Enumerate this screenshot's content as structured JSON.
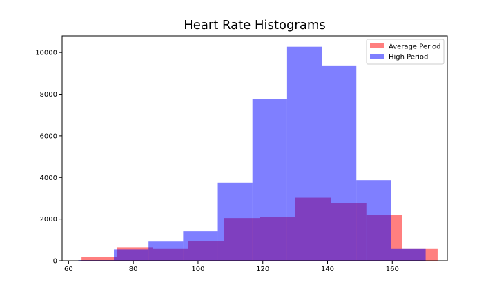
{
  "chart_data": {
    "type": "bar",
    "title": "Heart Rate Histograms",
    "xlabel": "",
    "ylabel": "",
    "xlim": [
      58,
      177
    ],
    "ylim": [
      0,
      10800
    ],
    "xticks": [
      60,
      80,
      100,
      120,
      140,
      160
    ],
    "yticks": [
      0,
      2000,
      4000,
      6000,
      8000,
      10000
    ],
    "grid": false,
    "legend_position": "top-right",
    "series": [
      {
        "name": "Average Period",
        "color": "#ff0000",
        "opacity": 0.5,
        "bins": [
          {
            "x0": 64,
            "x1": 75,
            "value": 180
          },
          {
            "x0": 75,
            "x1": 86,
            "value": 650
          },
          {
            "x0": 86,
            "x1": 97,
            "value": 570
          },
          {
            "x0": 97,
            "x1": 108,
            "value": 960
          },
          {
            "x0": 108,
            "x1": 119,
            "value": 2050
          },
          {
            "x0": 119,
            "x1": 130,
            "value": 2120
          },
          {
            "x0": 130,
            "x1": 141,
            "value": 3030
          },
          {
            "x0": 141,
            "x1": 152,
            "value": 2760
          },
          {
            "x0": 152,
            "x1": 163,
            "value": 2200
          },
          {
            "x0": 163,
            "x1": 174,
            "value": 570
          }
        ]
      },
      {
        "name": "High Period",
        "color": "#0000ff",
        "opacity": 0.5,
        "bins": [
          {
            "x0": 63,
            "x1": 74,
            "value": 30
          },
          {
            "x0": 74,
            "x1": 84.7,
            "value": 550
          },
          {
            "x0": 84.7,
            "x1": 95.4,
            "value": 920
          },
          {
            "x0": 95.4,
            "x1": 106.1,
            "value": 1420
          },
          {
            "x0": 106.1,
            "x1": 116.8,
            "value": 3750
          },
          {
            "x0": 116.8,
            "x1": 127.5,
            "value": 7770
          },
          {
            "x0": 127.5,
            "x1": 138.2,
            "value": 10280
          },
          {
            "x0": 138.2,
            "x1": 148.9,
            "value": 9380
          },
          {
            "x0": 148.9,
            "x1": 159.6,
            "value": 3870
          },
          {
            "x0": 159.6,
            "x1": 170.3,
            "value": 570
          }
        ]
      }
    ]
  }
}
